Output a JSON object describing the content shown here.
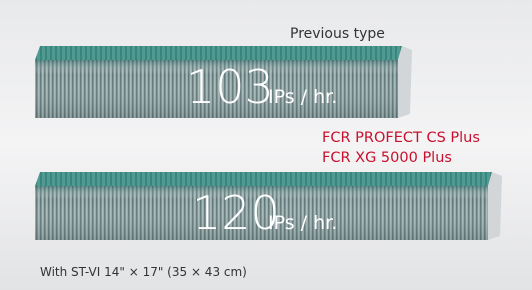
{
  "previous": {
    "label": "Previous type",
    "rate": "103",
    "unit": "IPs / hr."
  },
  "current": {
    "models": [
      "FCR PROFECT CS Plus",
      "FCR XG 5000 Plus"
    ],
    "rate": "120",
    "unit": "IPs / hr."
  },
  "footnote": "With ST-VI 14\" × 17\" (35 × 43 cm)"
}
